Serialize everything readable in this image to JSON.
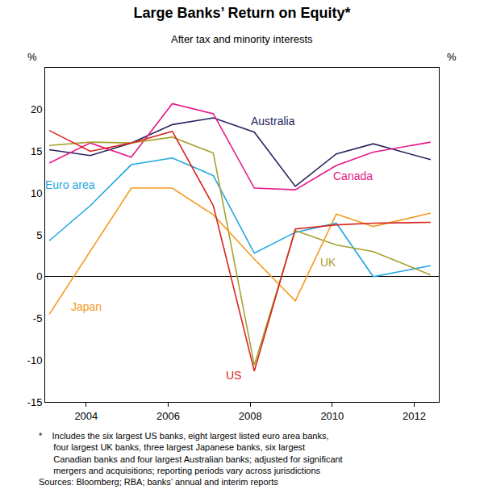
{
  "chart_data": {
    "type": "line",
    "title": "Large Banks’ Return on Equity*",
    "subtitle": "After tax and minority interests",
    "ylabel": "%",
    "x": [
      2003.1,
      2004.1,
      2005.1,
      2006.1,
      2007.1,
      2008.1,
      2009.1,
      2010.1,
      2011.0,
      2012.4
    ],
    "xlim": [
      2003,
      2012.6
    ],
    "xticks": [
      2004,
      2006,
      2008,
      2010,
      2012
    ],
    "ylim": [
      -15,
      25
    ],
    "yticks": [
      -15,
      -10,
      -5,
      0,
      5,
      10,
      15,
      20
    ],
    "y2lim": [
      -15,
      25
    ],
    "y2ticks": [
      -15,
      -10,
      -5,
      0,
      5,
      10,
      15,
      20
    ],
    "grid": false,
    "series": [
      {
        "name": "Australia",
        "color": "#27255f",
        "values": [
          15.2,
          14.5,
          16.0,
          18.2,
          19.0,
          17.3,
          10.8,
          14.7,
          15.9,
          14.0
        ]
      },
      {
        "name": "Canada",
        "color": "#e6198a",
        "values": [
          13.6,
          16.0,
          14.3,
          20.7,
          19.5,
          10.6,
          10.4,
          13.3,
          14.9,
          16.1
        ]
      },
      {
        "name": "Euro area",
        "color": "#1fa7e0",
        "values": [
          4.3,
          8.5,
          13.4,
          14.2,
          12.1,
          2.8,
          5.3,
          6.4,
          0.0,
          1.3
        ]
      },
      {
        "name": "UK",
        "color": "#a8a032",
        "values": [
          15.7,
          16.1,
          16.0,
          16.7,
          14.8,
          -10.6,
          5.5,
          3.8,
          3.0,
          0.2
        ]
      },
      {
        "name": "Japan",
        "color": "#f39a1f",
        "values": [
          -4.5,
          3.0,
          10.6,
          10.6,
          7.4,
          2.1,
          -2.9,
          7.5,
          6.0,
          7.6
        ]
      },
      {
        "name": "US",
        "color": "#d7261e",
        "values": [
          17.5,
          15.0,
          16.0,
          17.4,
          8.5,
          -11.3,
          5.7,
          6.2,
          6.4,
          6.5
        ]
      }
    ],
    "notes": [
      "*    Includes the six largest US banks, eight largest listed euro area banks,",
      "      four largest UK banks, three largest Japanese banks, six largest",
      "      Canadian banks and four largest Australian banks; adjusted for significant",
      "      mergers and acquisitions; reporting periods vary across jurisdictions",
      "Sources: Bloomberg; RBA; banks’ annual and interim reports"
    ]
  }
}
